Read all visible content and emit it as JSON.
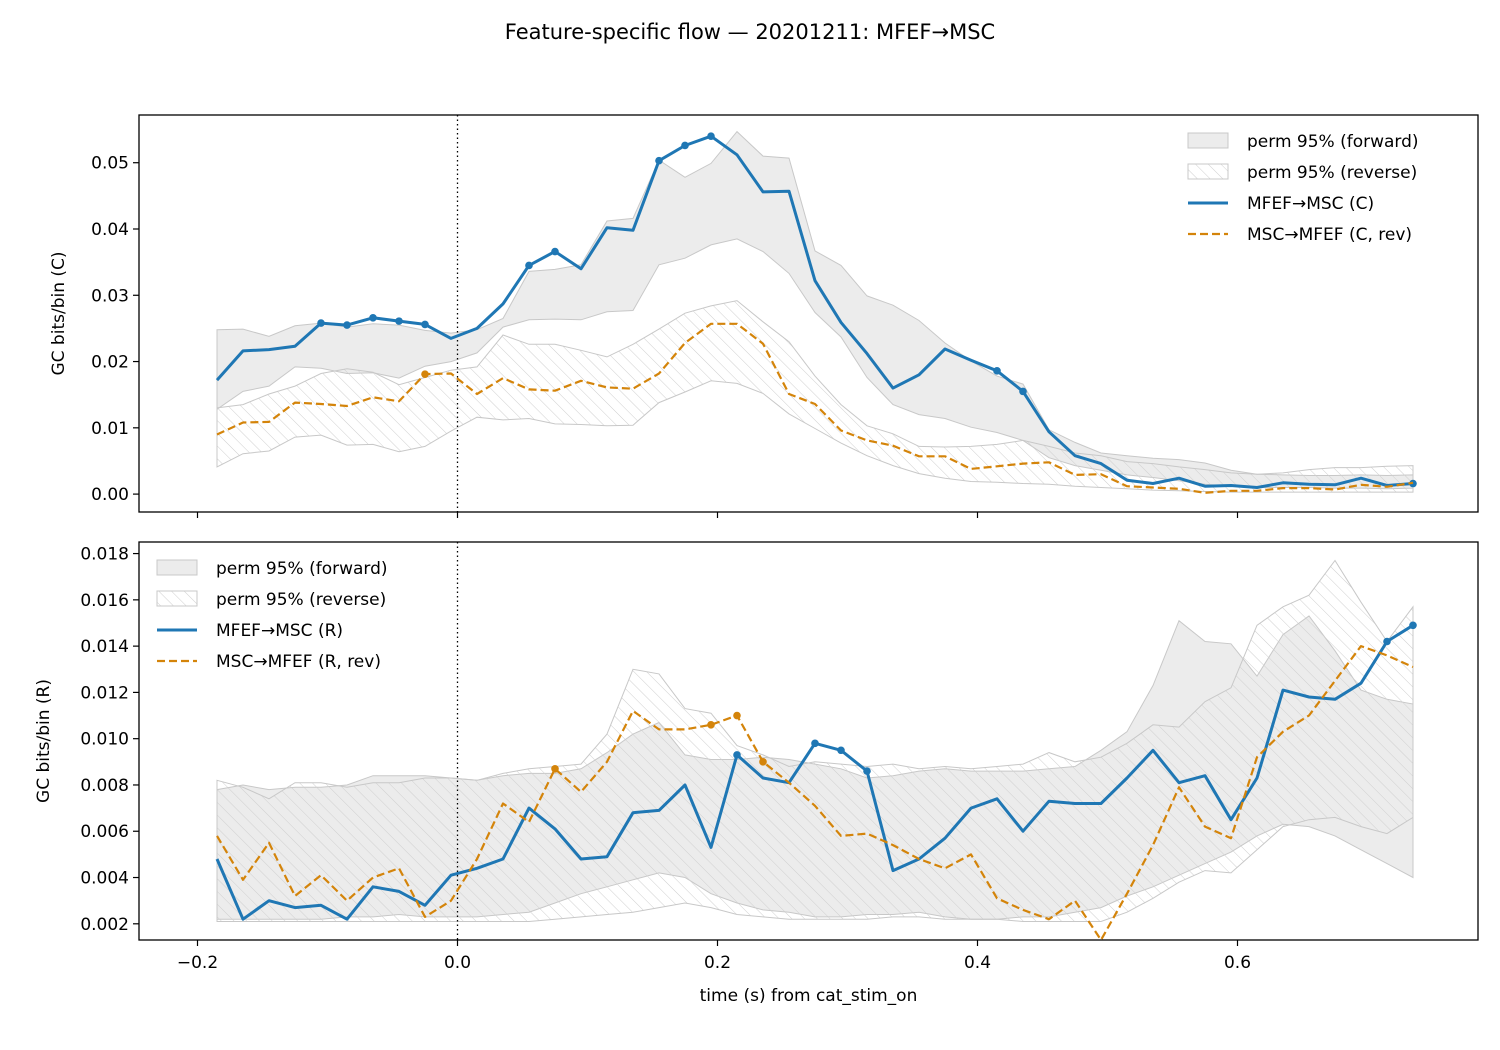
{
  "title": "Feature-specific flow — 20201211: MFEF→MSC",
  "colors": {
    "forward": "#1f77b4",
    "reverse": "#d4840a",
    "band_fill": "#e4e4e4",
    "band_edge": "#c8c8c8",
    "hatch": "#cfcfcf"
  },
  "chart_data": [
    {
      "type": "line",
      "xlabel": "",
      "ylabel": "GC bits/bin (C)",
      "xlim": [
        -0.245,
        0.785
      ],
      "ylim": [
        -0.0027,
        0.0572
      ],
      "xticks": [
        -0.2,
        0.0,
        0.2,
        0.4,
        0.6
      ],
      "xtick_labels": [
        "",
        "",
        "",
        "",
        ""
      ],
      "yticks": [
        0.0,
        0.01,
        0.02,
        0.03,
        0.04,
        0.05
      ],
      "ytick_labels": [
        "0.00",
        "0.01",
        "0.02",
        "0.03",
        "0.04",
        "0.05"
      ],
      "vline_x": 0.0,
      "legend_loc": "upper-right",
      "legend": [
        "perm 95% (forward)",
        "perm 95% (reverse)",
        "MFEF→MSC (C)",
        "MSC→MFEF (C, rev)"
      ],
      "x": [
        -0.185,
        -0.165,
        -0.145,
        -0.125,
        -0.105,
        -0.085,
        -0.065,
        -0.045,
        -0.025,
        -0.005,
        0.015,
        0.035,
        0.055,
        0.075,
        0.095,
        0.115,
        0.135,
        0.155,
        0.175,
        0.195,
        0.215,
        0.235,
        0.255,
        0.275,
        0.295,
        0.315,
        0.335,
        0.355,
        0.375,
        0.395,
        0.415,
        0.435,
        0.455,
        0.475,
        0.495,
        0.515,
        0.535,
        0.555,
        0.575,
        0.595,
        0.615,
        0.635,
        0.655,
        0.675,
        0.695,
        0.715,
        0.735
      ],
      "series": [
        {
          "name": "MFEF→MSC (C)",
          "style": "solid",
          "values": [
            0.0172,
            0.0216,
            0.0218,
            0.0223,
            0.0258,
            0.0255,
            0.0266,
            0.0261,
            0.0256,
            0.0235,
            0.025,
            0.0287,
            0.0345,
            0.0366,
            0.034,
            0.0402,
            0.0398,
            0.0503,
            0.0526,
            0.054,
            0.0512,
            0.0456,
            0.0457,
            0.0322,
            0.0259,
            0.0212,
            0.016,
            0.018,
            0.0219,
            0.0202,
            0.0186,
            0.0155,
            0.0094,
            0.0058,
            0.0046,
            0.0021,
            0.0016,
            0.0024,
            0.0012,
            0.0013,
            0.001,
            0.0017,
            0.0015,
            0.0014,
            0.0024,
            0.0013,
            0.0016
          ],
          "markers": [
            4,
            5,
            6,
            7,
            8,
            12,
            13,
            17,
            18,
            19,
            30,
            31,
            46
          ]
        },
        {
          "name": "MSC→MFEF (C, rev)",
          "style": "dashed",
          "values": [
            0.009,
            0.0108,
            0.0109,
            0.0138,
            0.0136,
            0.0133,
            0.0146,
            0.014,
            0.0181,
            0.0182,
            0.0151,
            0.0175,
            0.0158,
            0.0156,
            0.0171,
            0.0161,
            0.0159,
            0.0182,
            0.0228,
            0.0257,
            0.0257,
            0.0227,
            0.0151,
            0.0136,
            0.0096,
            0.0081,
            0.0073,
            0.0057,
            0.0057,
            0.0038,
            0.0042,
            0.0046,
            0.0048,
            0.0029,
            0.003,
            0.0012,
            0.001,
            0.0008,
            0.0002,
            0.0005,
            0.0005,
            0.0009,
            0.0009,
            0.0007,
            0.0014,
            0.0011,
            0.0017
          ],
          "markers": [
            8
          ]
        }
      ],
      "bands": [
        {
          "name": "perm 95% (forward)",
          "lower": [
            0.0128,
            0.0155,
            0.0163,
            0.0192,
            0.019,
            0.0182,
            0.0183,
            0.0175,
            0.0193,
            0.02,
            0.0213,
            0.0252,
            0.0263,
            0.0264,
            0.0263,
            0.0275,
            0.0277,
            0.0346,
            0.0356,
            0.0376,
            0.0385,
            0.0366,
            0.0333,
            0.0274,
            0.0237,
            0.0176,
            0.0135,
            0.012,
            0.0114,
            0.0101,
            0.0093,
            0.0081,
            0.0055,
            0.0043,
            0.0036,
            0.0029,
            0.0025,
            0.002,
            0.0015,
            0.0012,
            0.001,
            0.001,
            0.001,
            0.0009,
            0.0009,
            0.0008,
            0.0009
          ],
          "upper": [
            0.0248,
            0.0249,
            0.0238,
            0.0254,
            0.0258,
            0.0252,
            0.0257,
            0.0255,
            0.0247,
            0.0243,
            0.0248,
            0.0265,
            0.0336,
            0.0339,
            0.0346,
            0.0412,
            0.0416,
            0.0504,
            0.0478,
            0.0499,
            0.0547,
            0.051,
            0.0507,
            0.0367,
            0.0345,
            0.0299,
            0.0285,
            0.0262,
            0.0228,
            0.0201,
            0.0178,
            0.0166,
            0.0097,
            0.0078,
            0.0062,
            0.0058,
            0.0054,
            0.0052,
            0.0047,
            0.0036,
            0.003,
            0.0029,
            0.0028,
            0.0028,
            0.0029,
            0.0028,
            0.0029
          ]
        },
        {
          "name": "perm 95% (reverse)",
          "lower": [
            0.0041,
            0.0061,
            0.0065,
            0.0086,
            0.0089,
            0.0074,
            0.0075,
            0.0064,
            0.0072,
            0.0095,
            0.0116,
            0.0112,
            0.0114,
            0.0106,
            0.0105,
            0.0103,
            0.0104,
            0.0138,
            0.0154,
            0.0171,
            0.0167,
            0.0152,
            0.0121,
            0.0099,
            0.0077,
            0.0058,
            0.0043,
            0.0031,
            0.0024,
            0.0019,
            0.0018,
            0.0016,
            0.0015,
            0.0012,
            0.001,
            0.0008,
            0.0006,
            0.0005,
            0.0004,
            0.0003,
            0.0003,
            0.0003,
            0.0003,
            0.0003,
            0.0003,
            0.0003,
            0.0003
          ],
          "upper": [
            0.013,
            0.0135,
            0.0151,
            0.0163,
            0.0182,
            0.0189,
            0.0184,
            0.0165,
            0.0176,
            0.0187,
            0.0192,
            0.024,
            0.0226,
            0.0226,
            0.0217,
            0.0207,
            0.0226,
            0.0249,
            0.0273,
            0.0284,
            0.0292,
            0.026,
            0.023,
            0.0178,
            0.0135,
            0.0103,
            0.0091,
            0.0072,
            0.0071,
            0.0072,
            0.0075,
            0.0081,
            0.0072,
            0.0062,
            0.0058,
            0.0049,
            0.0046,
            0.0041,
            0.0037,
            0.0032,
            0.003,
            0.0032,
            0.0037,
            0.004,
            0.004,
            0.0042,
            0.0043
          ]
        }
      ]
    },
    {
      "type": "line",
      "xlabel": "time (s) from cat_stim_on",
      "ylabel": "GC bits/bin (R)",
      "xlim": [
        -0.245,
        0.785
      ],
      "ylim": [
        0.0013,
        0.0185
      ],
      "xticks": [
        -0.2,
        0.0,
        0.2,
        0.4,
        0.6
      ],
      "xtick_labels": [
        "−0.2",
        "0.0",
        "0.2",
        "0.4",
        "0.6"
      ],
      "yticks": [
        0.002,
        0.004,
        0.006,
        0.008,
        0.01,
        0.012,
        0.014,
        0.016,
        0.018
      ],
      "ytick_labels": [
        "0.002",
        "0.004",
        "0.006",
        "0.008",
        "0.010",
        "0.012",
        "0.014",
        "0.016",
        "0.018"
      ],
      "vline_x": 0.0,
      "legend_loc": "upper-left",
      "legend": [
        "perm 95% (forward)",
        "perm 95% (reverse)",
        "MFEF→MSC (R)",
        "MSC→MFEF (R, rev)"
      ],
      "x": [
        -0.185,
        -0.165,
        -0.145,
        -0.125,
        -0.105,
        -0.085,
        -0.065,
        -0.045,
        -0.025,
        -0.005,
        0.015,
        0.035,
        0.055,
        0.075,
        0.095,
        0.115,
        0.135,
        0.155,
        0.175,
        0.195,
        0.215,
        0.235,
        0.255,
        0.275,
        0.295,
        0.315,
        0.335,
        0.355,
        0.375,
        0.395,
        0.415,
        0.435,
        0.455,
        0.475,
        0.495,
        0.515,
        0.535,
        0.555,
        0.575,
        0.595,
        0.615,
        0.635,
        0.655,
        0.675,
        0.695,
        0.715,
        0.735
      ],
      "series": [
        {
          "name": "MFEF→MSC (R)",
          "style": "solid",
          "values": [
            0.0048,
            0.0022,
            0.003,
            0.0027,
            0.0028,
            0.0022,
            0.0036,
            0.0034,
            0.0028,
            0.0041,
            0.0044,
            0.0048,
            0.007,
            0.0061,
            0.0048,
            0.0049,
            0.0068,
            0.0069,
            0.008,
            0.0053,
            0.0093,
            0.0083,
            0.0081,
            0.0098,
            0.0095,
            0.0086,
            0.0043,
            0.0048,
            0.0057,
            0.007,
            0.0074,
            0.006,
            0.0073,
            0.0072,
            0.0072,
            0.0083,
            0.0095,
            0.0081,
            0.0084,
            0.0065,
            0.0083,
            0.0121,
            0.0118,
            0.0117,
            0.0124,
            0.0142,
            0.0149
          ],
          "markers": [
            20,
            23,
            24,
            25,
            45,
            46
          ]
        },
        {
          "name": "MSC→MFEF (R, rev)",
          "style": "dashed",
          "values": [
            0.0058,
            0.0039,
            0.0055,
            0.0032,
            0.0041,
            0.003,
            0.004,
            0.0044,
            0.0023,
            0.003,
            0.0048,
            0.0072,
            0.0064,
            0.0087,
            0.0077,
            0.009,
            0.0112,
            0.0104,
            0.0104,
            0.0106,
            0.011,
            0.009,
            0.0081,
            0.0071,
            0.0058,
            0.0059,
            0.0054,
            0.0048,
            0.0044,
            0.005,
            0.0031,
            0.0026,
            0.0022,
            0.003,
            0.0013,
            0.0033,
            0.0054,
            0.0079,
            0.0062,
            0.0057,
            0.0092,
            0.0103,
            0.011,
            0.0125,
            0.014,
            0.0136,
            0.0131
          ],
          "markers": [
            13,
            19,
            20,
            21
          ]
        }
      ],
      "bands": [
        {
          "name": "perm 95% (forward)",
          "lower": [
            0.0022,
            0.0022,
            0.0022,
            0.0022,
            0.0022,
            0.0023,
            0.0023,
            0.0024,
            0.0023,
            0.0023,
            0.0023,
            0.0024,
            0.0025,
            0.0029,
            0.0033,
            0.0036,
            0.0039,
            0.0042,
            0.004,
            0.0033,
            0.0029,
            0.0026,
            0.0025,
            0.0023,
            0.0023,
            0.0024,
            0.0024,
            0.0025,
            0.0023,
            0.0022,
            0.0022,
            0.0023,
            0.0023,
            0.0025,
            0.0027,
            0.0032,
            0.0036,
            0.0041,
            0.0046,
            0.0051,
            0.0058,
            0.0063,
            0.0062,
            0.0058,
            0.0052,
            0.0046,
            0.004
          ],
          "upper": [
            0.0078,
            0.008,
            0.0078,
            0.0079,
            0.0079,
            0.008,
            0.0084,
            0.0084,
            0.0084,
            0.0083,
            0.0082,
            0.0084,
            0.0085,
            0.0085,
            0.0087,
            0.0094,
            0.0102,
            0.0107,
            0.0093,
            0.0091,
            0.0091,
            0.0092,
            0.0091,
            0.0089,
            0.0087,
            0.0083,
            0.0084,
            0.0086,
            0.0087,
            0.0086,
            0.0086,
            0.0086,
            0.0087,
            0.0088,
            0.0095,
            0.0103,
            0.0123,
            0.0151,
            0.0142,
            0.0141,
            0.0127,
            0.0145,
            0.0153,
            0.0138,
            0.0121,
            0.0117,
            0.0115
          ]
        },
        {
          "name": "perm 95% (reverse)",
          "lower": [
            0.0021,
            0.0021,
            0.0021,
            0.0021,
            0.0021,
            0.0021,
            0.0021,
            0.0021,
            0.0021,
            0.0021,
            0.0021,
            0.0021,
            0.0021,
            0.0022,
            0.0023,
            0.0024,
            0.0025,
            0.0027,
            0.0029,
            0.0027,
            0.0024,
            0.0023,
            0.0022,
            0.0022,
            0.0022,
            0.0022,
            0.0023,
            0.0023,
            0.0022,
            0.0022,
            0.0022,
            0.0021,
            0.0021,
            0.0021,
            0.0021,
            0.0025,
            0.0031,
            0.0038,
            0.0043,
            0.0042,
            0.0052,
            0.0062,
            0.0065,
            0.0066,
            0.0062,
            0.0059,
            0.0066
          ],
          "upper": [
            0.0082,
            0.0079,
            0.0074,
            0.0081,
            0.0081,
            0.0079,
            0.0081,
            0.0081,
            0.0083,
            0.0083,
            0.0082,
            0.0085,
            0.0087,
            0.0088,
            0.0089,
            0.0102,
            0.013,
            0.0128,
            0.0113,
            0.0111,
            0.0097,
            0.0093,
            0.0088,
            0.009,
            0.0089,
            0.0088,
            0.0089,
            0.0087,
            0.0088,
            0.0087,
            0.0088,
            0.0089,
            0.0094,
            0.009,
            0.0092,
            0.0098,
            0.0106,
            0.0105,
            0.0116,
            0.0122,
            0.0149,
            0.0157,
            0.0162,
            0.0177,
            0.0159,
            0.0142,
            0.0157
          ]
        }
      ]
    }
  ]
}
